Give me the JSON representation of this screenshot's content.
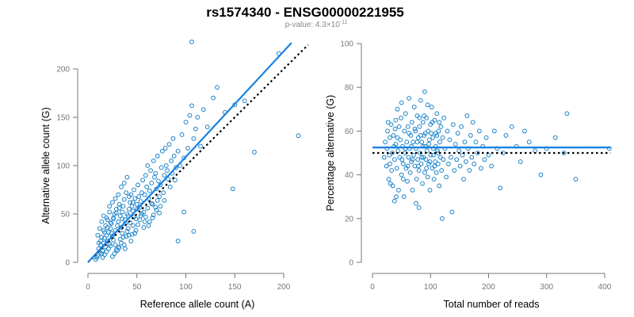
{
  "title": "rs1574340 - ENSG00000221955",
  "subtitle": {
    "prefix": "p-value: 4.3×10",
    "exponent": "-11"
  },
  "colors": {
    "points": "#1a82c9",
    "fit_line": "#1a82e0",
    "reference_line": "#000000"
  },
  "chart_data": [
    {
      "type": "scatter",
      "xlabel": "Reference allele count (A)",
      "ylabel": "Alternative allele count (G)",
      "xlim": [
        0,
        220
      ],
      "ylim": [
        0,
        230
      ],
      "xticks": [
        0,
        50,
        100,
        150,
        200
      ],
      "yticks": [
        0,
        50,
        100,
        150,
        200
      ],
      "fit_line": {
        "x": [
          0,
          208
        ],
        "y": [
          0,
          227
        ],
        "style": "solid"
      },
      "reference_line": {
        "x": [
          0,
          225
        ],
        "y": [
          0,
          225
        ],
        "style": "dotted"
      },
      "points": [
        [
          8,
          3
        ],
        [
          9,
          5
        ],
        [
          10,
          7
        ],
        [
          12,
          10
        ],
        [
          11,
          14
        ],
        [
          14,
          9
        ],
        [
          15,
          12
        ],
        [
          13,
          18
        ],
        [
          16,
          20
        ],
        [
          18,
          16
        ],
        [
          17,
          25
        ],
        [
          19,
          28
        ],
        [
          20,
          22
        ],
        [
          22,
          19
        ],
        [
          21,
          31
        ],
        [
          23,
          35
        ],
        [
          25,
          27
        ],
        [
          24,
          40
        ],
        [
          26,
          45
        ],
        [
          28,
          33
        ],
        [
          27,
          50
        ],
        [
          30,
          38
        ],
        [
          29,
          55
        ],
        [
          31,
          42
        ],
        [
          33,
          48
        ],
        [
          32,
          60
        ],
        [
          35,
          52
        ],
        [
          34,
          36
        ],
        [
          36,
          58
        ],
        [
          38,
          44
        ],
        [
          37,
          65
        ],
        [
          40,
          50
        ],
        [
          39,
          72
        ],
        [
          42,
          55
        ],
        [
          41,
          48
        ],
        [
          43,
          62
        ],
        [
          45,
          58
        ],
        [
          44,
          70
        ],
        [
          46,
          53
        ],
        [
          48,
          66
        ],
        [
          47,
          75
        ],
        [
          50,
          60
        ],
        [
          49,
          45
        ],
        [
          52,
          68
        ],
        [
          51,
          80
        ],
        [
          53,
          57
        ],
        [
          55,
          72
        ],
        [
          54,
          63
        ],
        [
          56,
          85
        ],
        [
          58,
          70
        ],
        [
          57,
          52
        ],
        [
          60,
          78
        ],
        [
          59,
          90
        ],
        [
          62,
          66
        ],
        [
          61,
          100
        ],
        [
          63,
          74
        ],
        [
          65,
          82
        ],
        [
          64,
          95
        ],
        [
          66,
          60
        ],
        [
          68,
          88
        ],
        [
          67,
          105
        ],
        [
          70,
          76
        ],
        [
          69,
          92
        ],
        [
          72,
          84
        ],
        [
          71,
          110
        ],
        [
          73,
          68
        ],
        [
          75,
          98
        ],
        [
          74,
          80
        ],
        [
          76,
          115
        ],
        [
          78,
          90
        ],
        [
          77,
          72
        ],
        [
          80,
          100
        ],
        [
          79,
          118
        ],
        [
          82,
          86
        ],
        [
          81,
          95
        ],
        [
          83,
          122
        ],
        [
          85,
          105
        ],
        [
          84,
          78
        ],
        [
          86,
          92
        ],
        [
          88,
          110
        ],
        [
          87,
          128
        ],
        [
          90,
          98
        ],
        [
          89,
          85
        ],
        [
          92,
          115
        ],
        [
          94,
          100
        ],
        [
          96,
          132
        ],
        [
          98,
          108
        ],
        [
          100,
          145
        ],
        [
          102,
          118
        ],
        [
          104,
          152
        ],
        [
          106,
          162
        ],
        [
          108,
          128
        ],
        [
          110,
          138
        ],
        [
          112,
          150
        ],
        [
          115,
          120
        ],
        [
          118,
          158
        ],
        [
          122,
          140
        ],
        [
          128,
          170
        ],
        [
          132,
          181
        ],
        [
          140,
          155
        ],
        [
          148,
          76
        ],
        [
          150,
          163
        ],
        [
          160,
          167
        ],
        [
          170,
          114
        ],
        [
          195,
          216
        ],
        [
          215,
          131
        ],
        [
          106,
          228
        ],
        [
          108,
          32
        ],
        [
          92,
          22
        ],
        [
          98,
          52
        ],
        [
          10,
          28
        ],
        [
          12,
          35
        ],
        [
          14,
          42
        ],
        [
          16,
          48
        ],
        [
          18,
          38
        ],
        [
          20,
          44
        ],
        [
          22,
          52
        ],
        [
          24,
          30
        ],
        [
          26,
          23
        ],
        [
          28,
          18
        ],
        [
          30,
          12
        ],
        [
          32,
          15
        ],
        [
          34,
          20
        ],
        [
          36,
          26
        ],
        [
          38,
          14
        ],
        [
          40,
          32
        ],
        [
          42,
          28
        ],
        [
          44,
          22
        ],
        [
          46,
          38
        ],
        [
          48,
          30
        ],
        [
          15,
          5
        ],
        [
          17,
          8
        ],
        [
          19,
          11
        ],
        [
          21,
          14
        ],
        [
          23,
          17
        ],
        [
          25,
          6
        ],
        [
          27,
          9
        ],
        [
          29,
          13
        ],
        [
          31,
          16
        ],
        [
          33,
          24
        ],
        [
          35,
          30
        ],
        [
          37,
          18
        ],
        [
          39,
          27
        ],
        [
          41,
          35
        ],
        [
          43,
          41
        ],
        [
          45,
          29
        ],
        [
          47,
          47
        ],
        [
          49,
          33
        ],
        [
          51,
          39
        ],
        [
          53,
          44
        ],
        [
          55,
          50
        ],
        [
          57,
          36
        ],
        [
          59,
          47
        ],
        [
          61,
          56
        ],
        [
          63,
          42
        ],
        [
          65,
          61
        ],
        [
          67,
          49
        ],
        [
          69,
          57
        ],
        [
          71,
          64
        ],
        [
          73,
          51
        ],
        [
          13,
          22
        ],
        [
          16,
          33
        ],
        [
          19,
          46
        ],
        [
          22,
          58
        ],
        [
          25,
          62
        ],
        [
          28,
          66
        ],
        [
          31,
          70
        ],
        [
          34,
          78
        ],
        [
          37,
          82
        ],
        [
          40,
          88
        ],
        [
          11,
          20
        ],
        [
          14,
          26
        ],
        [
          17,
          31
        ],
        [
          20,
          36
        ],
        [
          23,
          41
        ],
        [
          26,
          46
        ],
        [
          29,
          51
        ],
        [
          32,
          56
        ],
        [
          35,
          45
        ],
        [
          38,
          40
        ],
        [
          42,
          68
        ],
        [
          46,
          62
        ],
        [
          50,
          55
        ],
        [
          54,
          48
        ],
        [
          58,
          42
        ],
        [
          62,
          38
        ],
        [
          66,
          46
        ],
        [
          70,
          54
        ],
        [
          74,
          58
        ],
        [
          78,
          64
        ]
      ]
    },
    {
      "type": "scatter",
      "xlabel": "Total number of reads",
      "ylabel": "Percentage alternative (G)",
      "xlim": [
        0,
        410
      ],
      "ylim": [
        0,
        100
      ],
      "xticks": [
        0,
        100,
        200,
        300,
        400
      ],
      "yticks": [
        0,
        20,
        40,
        60,
        80,
        100
      ],
      "fit_line": {
        "y": 52.5,
        "style": "solid"
      },
      "reference_line": {
        "y": 50,
        "style": "dotted"
      },
      "points": [
        [
          20,
          48
        ],
        [
          22,
          55
        ],
        [
          24,
          44
        ],
        [
          25,
          52
        ],
        [
          26,
          60
        ],
        [
          28,
          38
        ],
        [
          30,
          57
        ],
        [
          30,
          45
        ],
        [
          32,
          63
        ],
        [
          33,
          42
        ],
        [
          34,
          50
        ],
        [
          35,
          35
        ],
        [
          36,
          58
        ],
        [
          38,
          47
        ],
        [
          38,
          28
        ],
        [
          40,
          65
        ],
        [
          40,
          54
        ],
        [
          42,
          43
        ],
        [
          43,
          70
        ],
        [
          44,
          51
        ],
        [
          45,
          33
        ],
        [
          46,
          62
        ],
        [
          47,
          48
        ],
        [
          48,
          56
        ],
        [
          50,
          40
        ],
        [
          50,
          73
        ],
        [
          52,
          53
        ],
        [
          53,
          45
        ],
        [
          54,
          30
        ],
        [
          55,
          60
        ],
        [
          56,
          50
        ],
        [
          57,
          68
        ],
        [
          58,
          43
        ],
        [
          59,
          55
        ],
        [
          60,
          37
        ],
        [
          61,
          62
        ],
        [
          62,
          48
        ],
        [
          63,
          75
        ],
        [
          64,
          52
        ],
        [
          65,
          41
        ],
        [
          66,
          58
        ],
        [
          67,
          46
        ],
        [
          68,
          64
        ],
        [
          69,
          33
        ],
        [
          70,
          55
        ],
        [
          71,
          49
        ],
        [
          72,
          71
        ],
        [
          73,
          44
        ],
        [
          74,
          60
        ],
        [
          75,
          52
        ],
        [
          76,
          38
        ],
        [
          77,
          67
        ],
        [
          78,
          47
        ],
        [
          79,
          57
        ],
        [
          80,
          42
        ],
        [
          80,
          25
        ],
        [
          81,
          62
        ],
        [
          82,
          50
        ],
        [
          83,
          74
        ],
        [
          84,
          45
        ],
        [
          85,
          55
        ],
        [
          86,
          36
        ],
        [
          87,
          64
        ],
        [
          88,
          48
        ],
        [
          89,
          58
        ],
        [
          90,
          41
        ],
        [
          90,
          78
        ],
        [
          91,
          53
        ],
        [
          92,
          47
        ],
        [
          93,
          66
        ],
        [
          94,
          51
        ],
        [
          95,
          39
        ],
        [
          96,
          60
        ],
        [
          97,
          45
        ],
        [
          98,
          56
        ],
        [
          99,
          33
        ],
        [
          100,
          63
        ],
        [
          100,
          49
        ],
        [
          102,
          71
        ],
        [
          103,
          43
        ],
        [
          104,
          57
        ],
        [
          105,
          52
        ],
        [
          106,
          38
        ],
        [
          107,
          65
        ],
        [
          108,
          46
        ],
        [
          109,
          59
        ],
        [
          110,
          41
        ],
        [
          111,
          68
        ],
        [
          112,
          51
        ],
        [
          113,
          45
        ],
        [
          114,
          60
        ],
        [
          115,
          35
        ],
        [
          116,
          55
        ],
        [
          117,
          48
        ],
        [
          118,
          62
        ],
        [
          119,
          42
        ],
        [
          120,
          20
        ],
        [
          121,
          57
        ],
        [
          122,
          47
        ],
        [
          123,
          66
        ],
        [
          125,
          52
        ],
        [
          127,
          39
        ],
        [
          129,
          60
        ],
        [
          131,
          45
        ],
        [
          133,
          56
        ],
        [
          135,
          48
        ],
        [
          137,
          23
        ],
        [
          139,
          63
        ],
        [
          141,
          42
        ],
        [
          143,
          54
        ],
        [
          145,
          47
        ],
        [
          147,
          59
        ],
        [
          149,
          51
        ],
        [
          151,
          44
        ],
        [
          153,
          62
        ],
        [
          155,
          49
        ],
        [
          157,
          38
        ],
        [
          159,
          55
        ],
        [
          161,
          46
        ],
        [
          163,
          67
        ],
        [
          165,
          52
        ],
        [
          167,
          42
        ],
        [
          169,
          58
        ],
        [
          171,
          48
        ],
        [
          173,
          64
        ],
        [
          175,
          45
        ],
        [
          178,
          55
        ],
        [
          181,
          50
        ],
        [
          184,
          60
        ],
        [
          187,
          43
        ],
        [
          190,
          53
        ],
        [
          193,
          47
        ],
        [
          196,
          57
        ],
        [
          200,
          49
        ],
        [
          205,
          44
        ],
        [
          210,
          60
        ],
        [
          215,
          52
        ],
        [
          220,
          34
        ],
        [
          225,
          50
        ],
        [
          230,
          58
        ],
        [
          240,
          62
        ],
        [
          248,
          53
        ],
        [
          255,
          46
        ],
        [
          262,
          60
        ],
        [
          270,
          55
        ],
        [
          280,
          51
        ],
        [
          290,
          40
        ],
        [
          300,
          52
        ],
        [
          315,
          57
        ],
        [
          330,
          50
        ],
        [
          335,
          68
        ],
        [
          350,
          38
        ],
        [
          408,
          52
        ],
        [
          27,
          64
        ],
        [
          29,
          49
        ],
        [
          31,
          36
        ],
        [
          37,
          53
        ],
        [
          39,
          61
        ],
        [
          41,
          30
        ],
        [
          43,
          57
        ],
        [
          49,
          66
        ],
        [
          51,
          47
        ],
        [
          53,
          38
        ],
        [
          57,
          52
        ],
        [
          61,
          44
        ],
        [
          63,
          59
        ],
        [
          67,
          53
        ],
        [
          69,
          47
        ],
        [
          73,
          61
        ],
        [
          75,
          27
        ],
        [
          77,
          55
        ],
        [
          79,
          44
        ],
        [
          81,
          66
        ],
        [
          83,
          58
        ],
        [
          85,
          48
        ],
        [
          87,
          53
        ],
        [
          89,
          67
        ],
        [
          91,
          59
        ],
        [
          93,
          43
        ],
        [
          95,
          72
        ],
        [
          97,
          54
        ],
        [
          99,
          46
        ],
        [
          101,
          59
        ],
        [
          103,
          64
        ],
        [
          105,
          49
        ],
        [
          107,
          44
        ],
        [
          109,
          53
        ],
        [
          111,
          58
        ],
        [
          113,
          50
        ],
        [
          115,
          64
        ]
      ]
    }
  ]
}
